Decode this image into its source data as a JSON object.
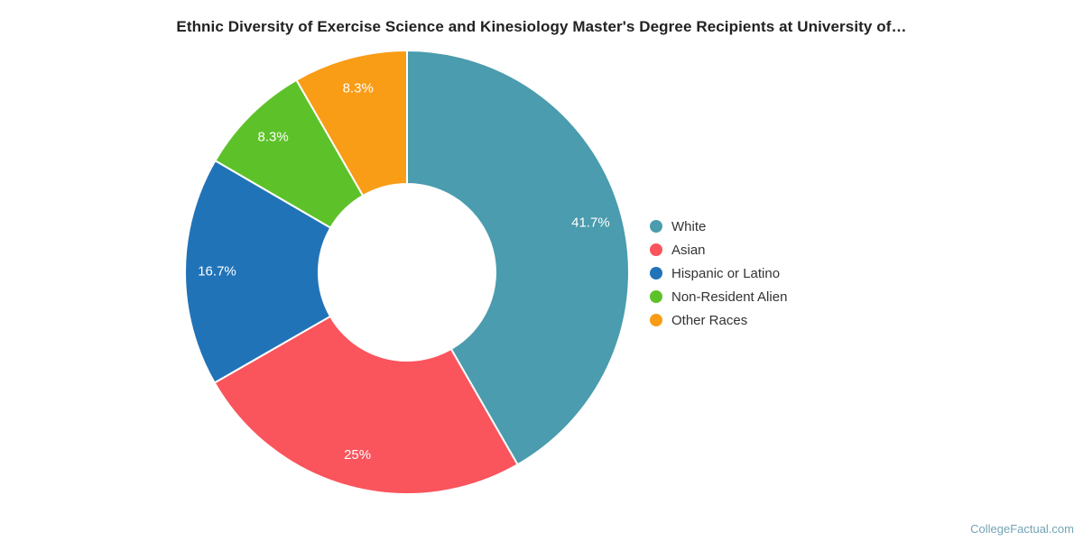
{
  "chart_data": {
    "type": "pie",
    "subtype": "donut",
    "title": "Ethnic Diversity of Exercise Science and Kinesiology Master's Degree Recipients at University of…",
    "legend_position": "right",
    "start_angle_deg": 0,
    "direction": "clockwise",
    "inner_radius_ratio": 0.4,
    "slices": [
      {
        "label": "White",
        "value": 41.7,
        "display": "41.7%",
        "color": "#4a9cae"
      },
      {
        "label": "Asian",
        "value": 25,
        "display": "25%",
        "color": "#fa545c"
      },
      {
        "label": "Hispanic or Latino",
        "value": 16.7,
        "display": "16.7%",
        "color": "#2173b8"
      },
      {
        "label": "Non-Resident Alien",
        "value": 8.3,
        "display": "8.3%",
        "color": "#5dc229"
      },
      {
        "label": "Other Races",
        "value": 8.3,
        "display": "8.3%",
        "color": "#f99c16"
      }
    ]
  },
  "watermark": "CollegeFactual.com"
}
